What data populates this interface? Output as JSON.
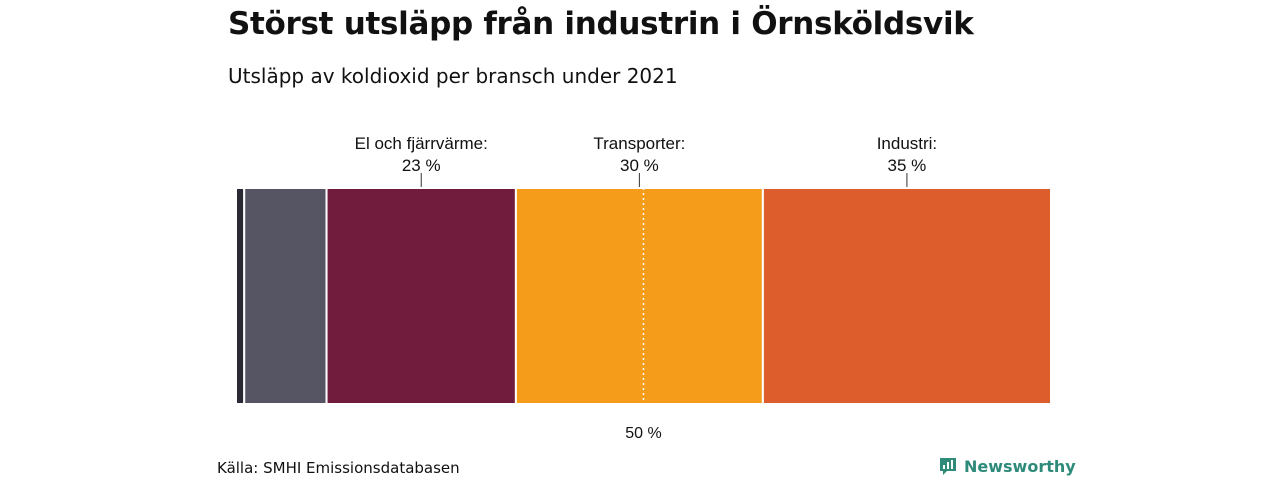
{
  "title": "Störst utsläpp från industrin i Örnsköldsvik",
  "subtitle": "Utsläpp av koldioxid per bransch under 2021",
  "source": "Källa: SMHI Emissionsdatabasen",
  "brand": "Newsworthy",
  "colors": {
    "text": "#111111",
    "brand": "#2e8b7a",
    "midline": "#ffffff"
  },
  "chart_data": {
    "type": "bar",
    "orientation": "horizontal-stacked-100",
    "segments": [
      {
        "label": "",
        "value": 1,
        "color": "#2a2a35",
        "annotated": false
      },
      {
        "label": "",
        "value": 10,
        "color": "#565563",
        "annotated": false
      },
      {
        "label": "El och fjärrvärme:",
        "value_label": "23 %",
        "value": 23,
        "color": "#711c3c",
        "annotated": true
      },
      {
        "label": "Transporter:",
        "value_label": "30 %",
        "value": 30,
        "color": "#f59c1a",
        "annotated": true
      },
      {
        "label": "Industri:",
        "value_label": "35 %",
        "value": 35,
        "color": "#de5d2d",
        "annotated": true
      }
    ],
    "midline": {
      "value": 50,
      "label": "50 %"
    },
    "xlim": [
      0,
      100
    ]
  }
}
